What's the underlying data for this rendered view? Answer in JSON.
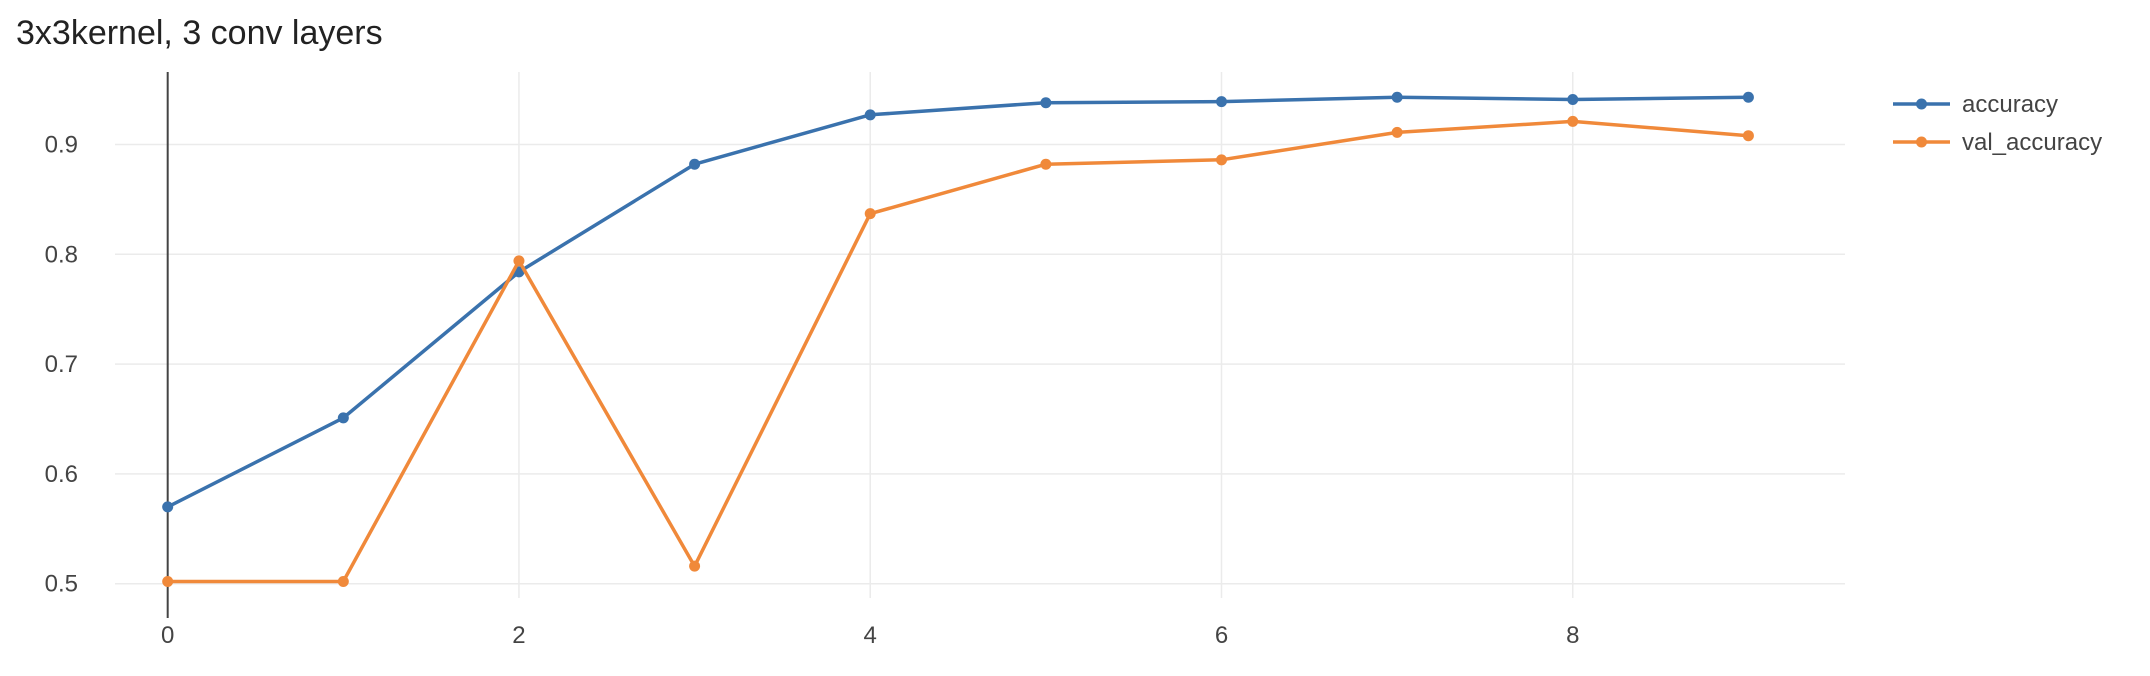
{
  "chart_data": {
    "type": "line",
    "title": "3x3kernel, 3 conv layers",
    "xlabel": "",
    "ylabel": "",
    "x": [
      0,
      1,
      2,
      3,
      4,
      5,
      6,
      7,
      8,
      9
    ],
    "x_ticks": [
      0,
      2,
      4,
      6,
      8
    ],
    "y_ticks": [
      0.5,
      0.6,
      0.7,
      0.8,
      0.9
    ],
    "xlim": [
      -0.3,
      9.55
    ],
    "ylim": [
      0.487,
      0.966
    ],
    "grid": true,
    "legend_position": "top-right",
    "series": [
      {
        "name": "accuracy",
        "color": "#3a72ad",
        "values": [
          0.57,
          0.651,
          0.784,
          0.882,
          0.927,
          0.938,
          0.939,
          0.943,
          0.941,
          0.943
        ]
      },
      {
        "name": "val_accuracy",
        "color": "#f0893a",
        "values": [
          0.502,
          0.502,
          0.794,
          0.516,
          0.837,
          0.882,
          0.886,
          0.911,
          0.921,
          0.908
        ]
      }
    ]
  }
}
